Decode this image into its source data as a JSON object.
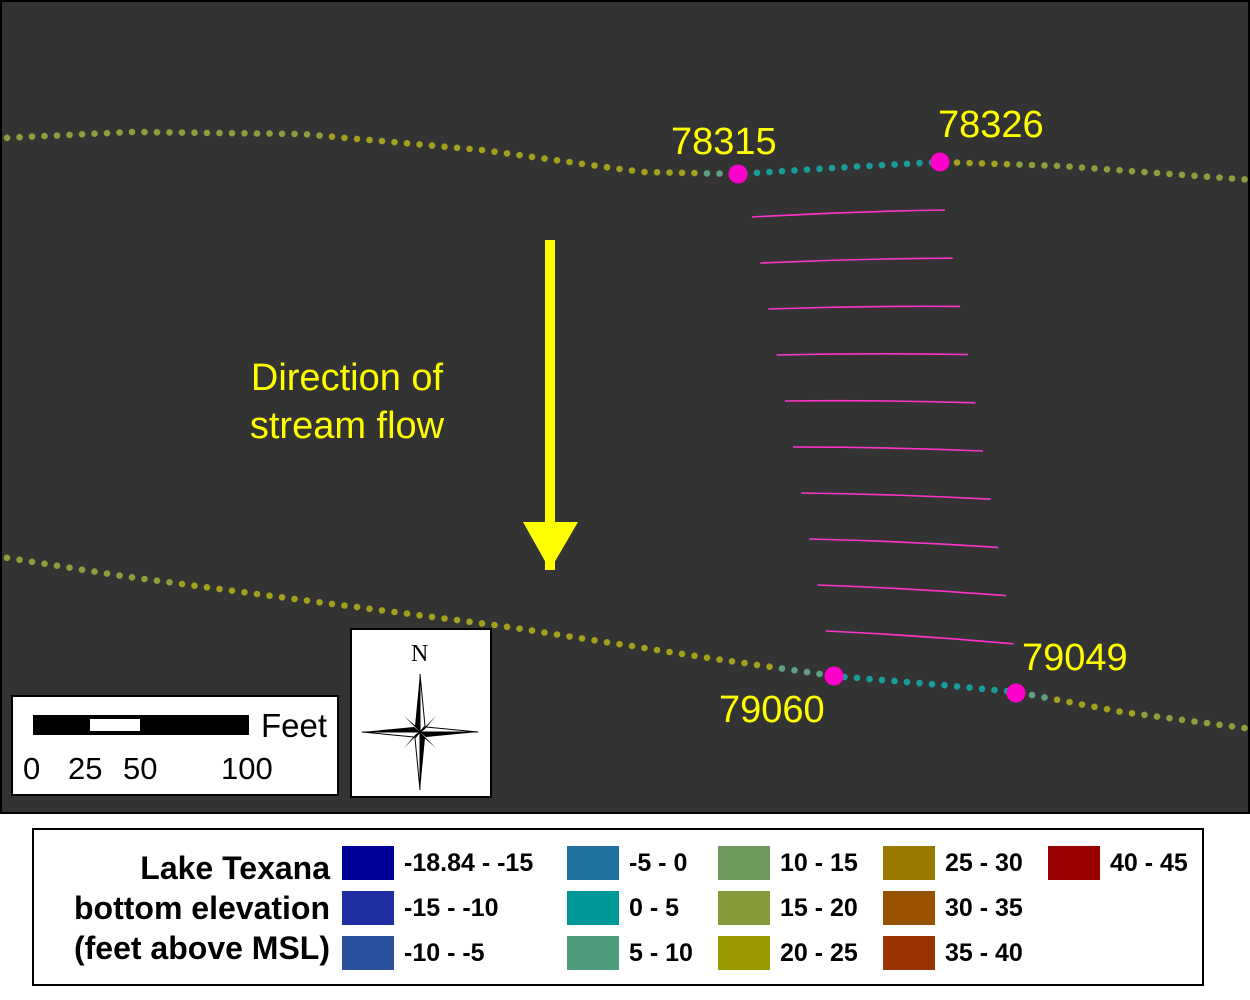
{
  "map": {
    "background": "#333333",
    "flow_label": {
      "line1": "Direction of",
      "line2": "stream flow"
    },
    "arrow_color": "#ffff00",
    "point_color": "#ff00cc",
    "points": [
      {
        "id": "78315"
      },
      {
        "id": "78326"
      },
      {
        "id": "79049"
      },
      {
        "id": "79060"
      }
    ],
    "transect_color": "#ff33cc",
    "transect_count": 10
  },
  "scalebar": {
    "unit": "Feet",
    "ticks": [
      "0",
      "25",
      "50",
      "100"
    ]
  },
  "compass": {
    "north": "N"
  },
  "legend": {
    "title": [
      "Lake Texana",
      "bottom elevation",
      "(feet above MSL)"
    ],
    "classes": [
      {
        "range": "-18.84 - -15",
        "color": "#000099"
      },
      {
        "range": "-15 - -10",
        "color": "#1f2ea0"
      },
      {
        "range": "-10 - -5",
        "color": "#2a519e"
      },
      {
        "range": "-5 - 0",
        "color": "#1f72a0"
      },
      {
        "range": "0 - 5",
        "color": "#009999"
      },
      {
        "range": "5 - 10",
        "color": "#4c9b7a"
      },
      {
        "range": "10 - 15",
        "color": "#6e9a5e"
      },
      {
        "range": "15 - 20",
        "color": "#879a3a"
      },
      {
        "range": "20 - 25",
        "color": "#999900"
      },
      {
        "range": "25 - 30",
        "color": "#997a00"
      },
      {
        "range": "30 - 35",
        "color": "#995200"
      },
      {
        "range": "35 - 40",
        "color": "#993300"
      },
      {
        "range": "40 - 45",
        "color": "#990000"
      }
    ]
  }
}
